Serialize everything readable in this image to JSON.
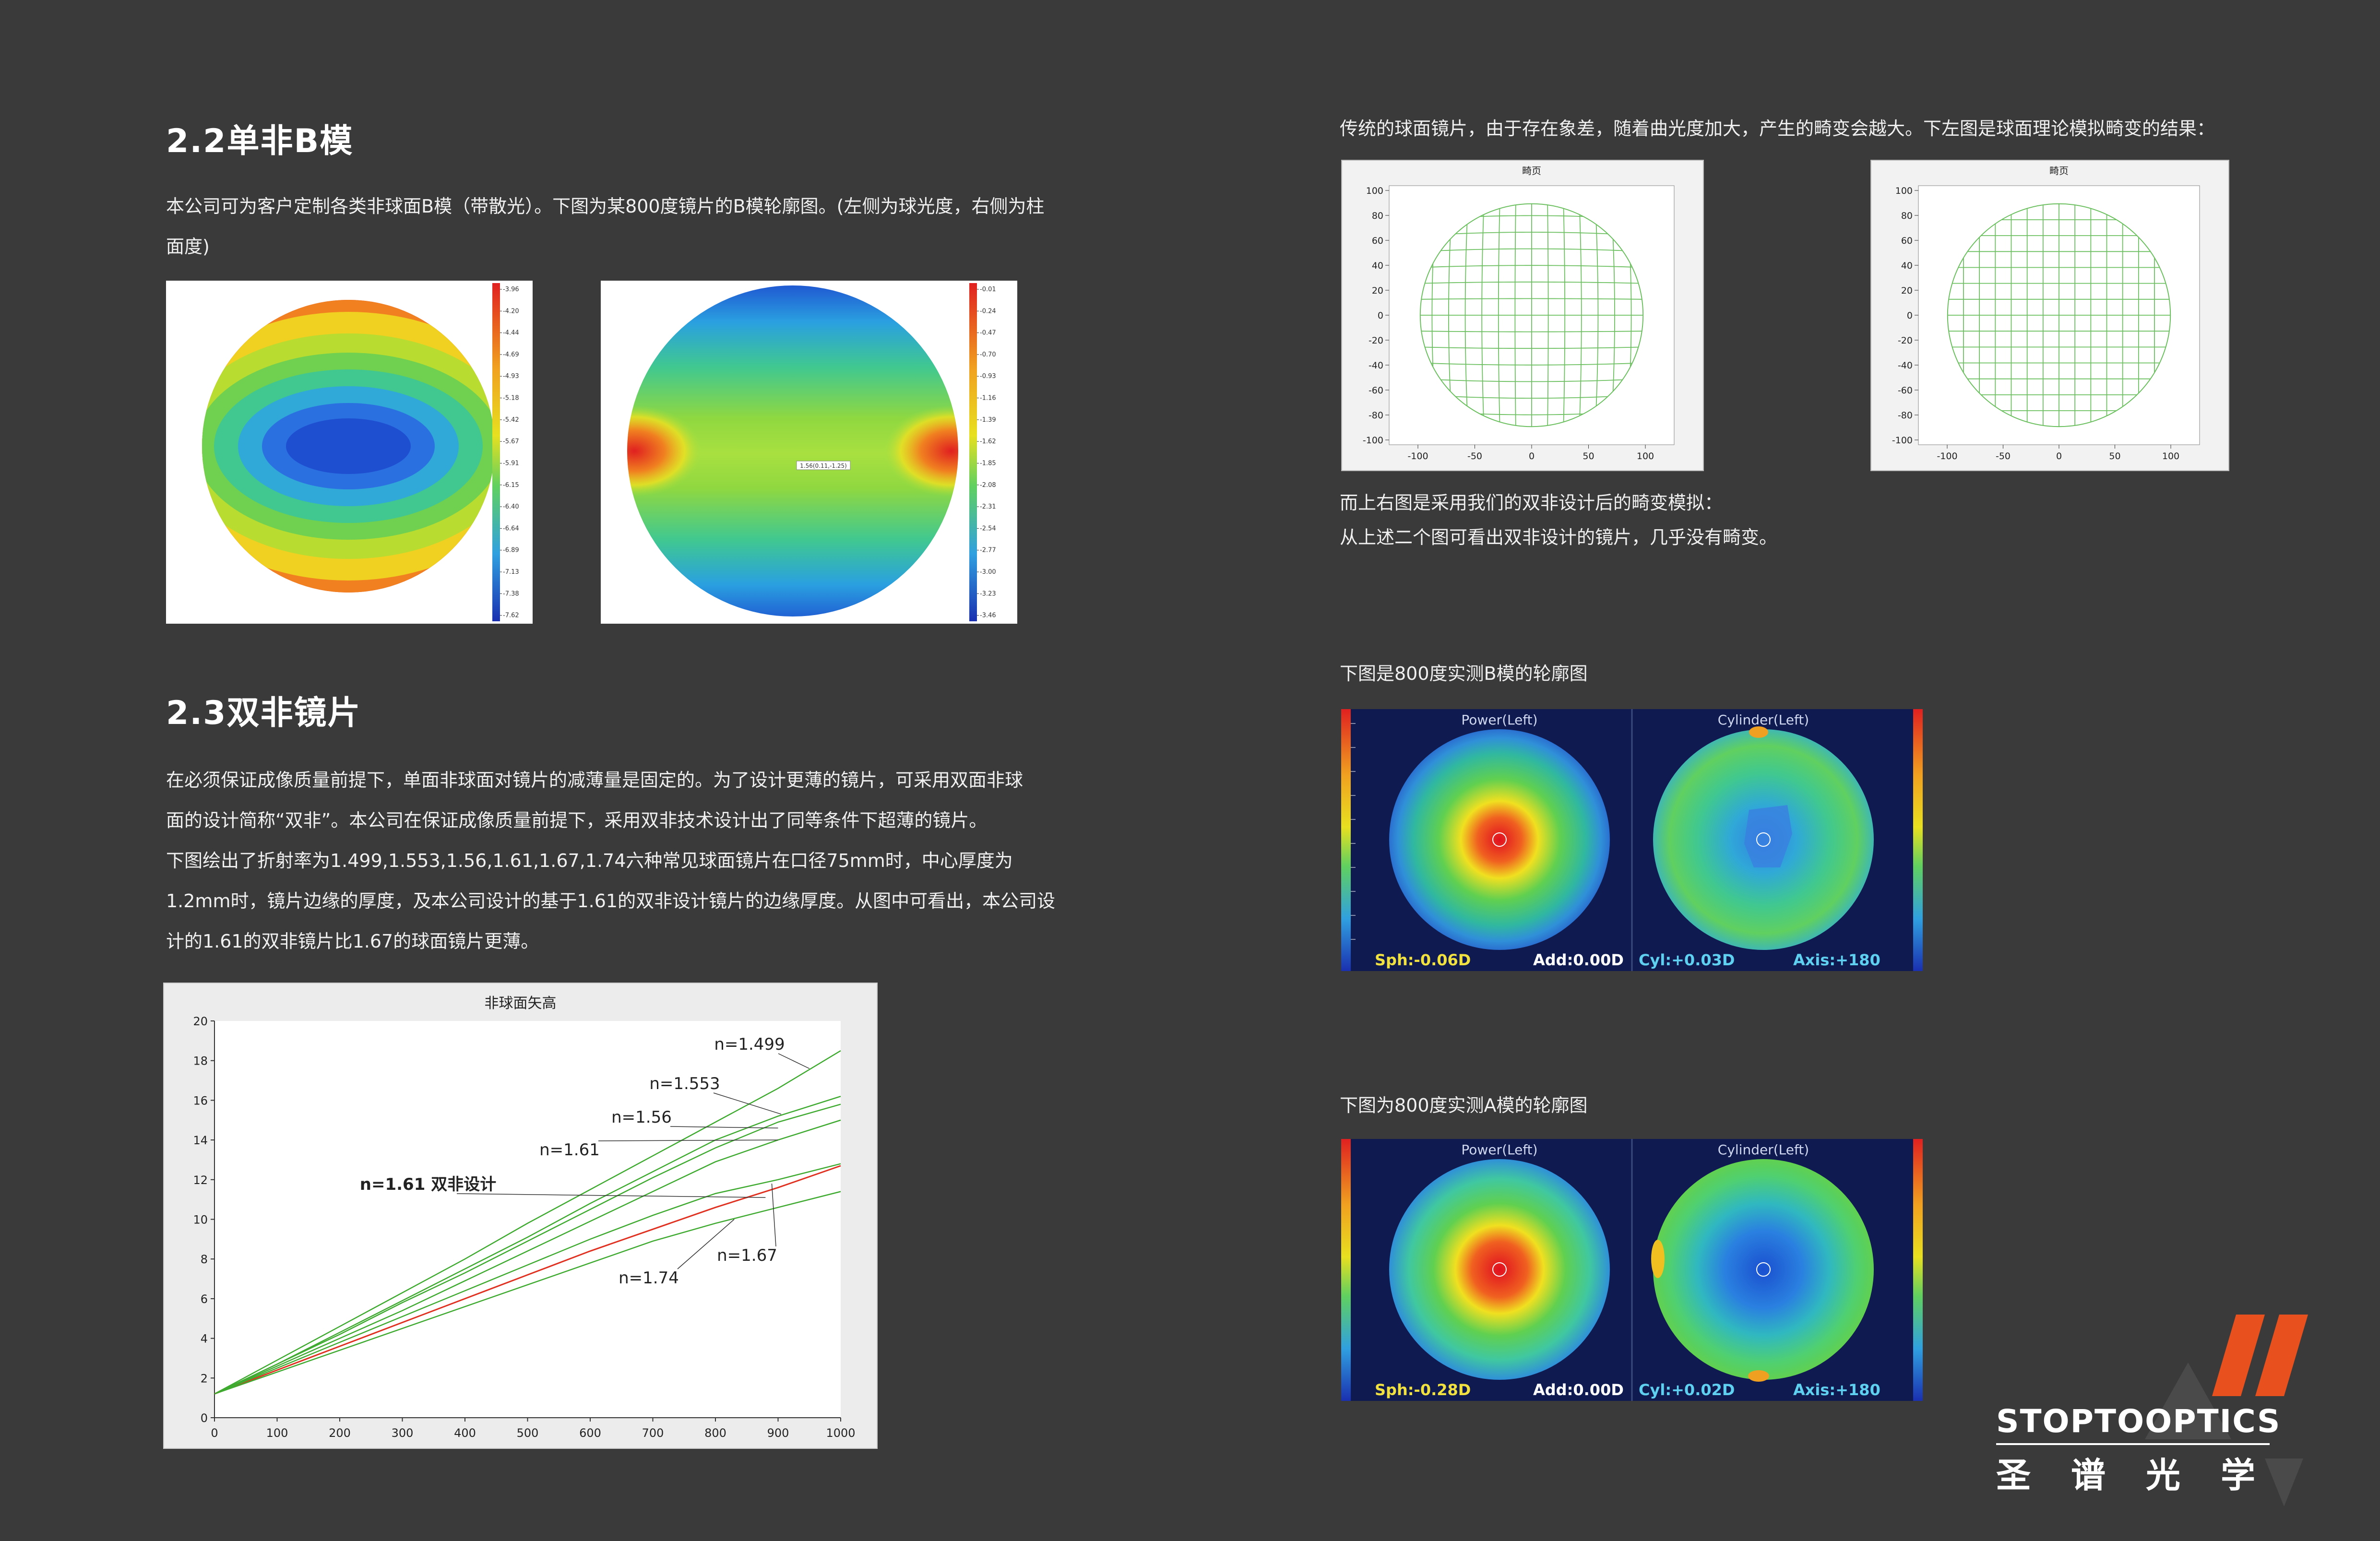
{
  "sec22": {
    "title": "2.2单非B模",
    "para_line1": "本公司可为客户定制各类非球面B模（带散光）。下图为某800度镜片的B模轮廓图。(左侧为球光度，右侧为柱",
    "para_line2": "面度)"
  },
  "sph_scale": [
    "-3.96",
    "-4.20",
    "-4.44",
    "-4.69",
    "-4.93",
    "-5.18",
    "-5.42",
    "-5.67",
    "-5.91",
    "-6.15",
    "-6.40",
    "-6.64",
    "-6.89",
    "-7.13",
    "-7.38",
    "-7.62"
  ],
  "cyl_scale": [
    "-0.01",
    "-0.24",
    "-0.47",
    "-0.70",
    "-0.93",
    "-1.16",
    "-1.39",
    "-1.62",
    "-1.85",
    "-2.08",
    "-2.31",
    "-2.54",
    "-2.77",
    "-3.00",
    "-3.23",
    "-3.46"
  ],
  "cyl_tooltip": "1.56(0.11,-1.25)",
  "sec23": {
    "title": "2.3双非镜片",
    "lines": [
      "在必须保证成像质量前提下，单面非球面对镜片的减薄量是固定的。为了设计更薄的镜片，可采用双面非球",
      "面的设计简称“双非”。本公司在保证成像质量前提下，采用双非技术设计出了同等条件下超薄的镜片。",
      "下图绘出了折射率为1.499,1.553,1.56,1.61,1.67,1.74六种常见球面镜片在口径75mm时，中心厚度为",
      "1.2mm时，镜片边缘的厚度，及本公司设计的基于1.61的双非设计镜片的边缘厚度。从图中可看出，本公司设",
      "计的1.61的双非镜片比1.67的球面镜片更薄。"
    ]
  },
  "chart_data": {
    "type": "line",
    "title": "非球面矢高",
    "xlabel": "",
    "ylabel": "",
    "x": [
      0,
      100,
      200,
      300,
      400,
      500,
      600,
      700,
      800,
      900,
      1000
    ],
    "xlim": [
      0,
      1000
    ],
    "ylim": [
      0,
      20
    ],
    "xticks": [
      "0",
      "100",
      "200",
      "300",
      "400",
      "500",
      "600",
      "700",
      "800",
      "900",
      "1000"
    ],
    "yticks": [
      "0",
      "2",
      "4",
      "6",
      "8",
      "10",
      "12",
      "14",
      "16",
      "18",
      "20"
    ],
    "grid": false,
    "series": [
      {
        "name": "n=1.499",
        "color": "#3faa30",
        "values": [
          1.2,
          2.9,
          4.6,
          6.3,
          8.0,
          9.8,
          11.5,
          13.2,
          14.9,
          16.6,
          18.5
        ]
      },
      {
        "name": "n=1.553",
        "color": "#3faa30",
        "values": [
          1.2,
          2.7,
          4.3,
          5.9,
          7.5,
          9.1,
          10.8,
          12.4,
          14.0,
          15.2,
          16.2
        ]
      },
      {
        "name": "n=1.56",
        "color": "#3faa30",
        "values": [
          1.2,
          2.7,
          4.2,
          5.8,
          7.3,
          8.9,
          10.5,
          12.1,
          13.6,
          14.9,
          15.8
        ]
      },
      {
        "name": "n=1.61",
        "color": "#3faa30",
        "values": [
          1.2,
          2.6,
          4.0,
          5.4,
          6.9,
          8.4,
          9.9,
          11.4,
          12.9,
          14.0,
          15.0
        ]
      },
      {
        "name": "n=1.61 双非设计",
        "color": "#e03020",
        "values": [
          1.2,
          2.4,
          3.6,
          4.8,
          6.0,
          7.2,
          8.4,
          9.5,
          10.6,
          11.6,
          12.7
        ]
      },
      {
        "name": "n=1.67",
        "color": "#3faa30",
        "values": [
          1.2,
          2.5,
          3.8,
          5.1,
          6.4,
          7.7,
          9.0,
          10.2,
          11.3,
          12.0,
          12.8
        ]
      },
      {
        "name": "n=1.74",
        "color": "#3faa30",
        "values": [
          1.2,
          2.3,
          3.4,
          4.5,
          5.6,
          6.7,
          7.8,
          8.9,
          9.8,
          10.6,
          11.4
        ]
      }
    ],
    "annotations": [
      "n=1.499",
      "n=1.553",
      "n=1.56",
      "n=1.61",
      "n=1.61 双非设计",
      "n=1.67",
      "n=1.74"
    ]
  },
  "distortion": {
    "intro": "传统的球面镜片，由于存在象差，随着曲光度加大，产生的畸变会越大。下左图是球面理论模拟畸变的结果：",
    "left_title": "畸页",
    "right_title": "畸页",
    "yticks": [
      "100",
      "80",
      "60",
      "40",
      "20",
      "0",
      "-20",
      "-40",
      "-60",
      "-80",
      "-100"
    ],
    "xticks": [
      "-100",
      "-50",
      "0",
      "50",
      "100"
    ],
    "after_line1": "而上右图是采用我们的双非设计后的畸变模拟：",
    "after_line2": "从上述二个图可看出双非设计的镜片，几乎没有畸变。"
  },
  "meas_b": {
    "caption": "下图是800度实测B模的轮廓图",
    "power_label": "Power(Left)",
    "cyl_label": "Cylinder(Left)",
    "sph": "Sph:-0.06D",
    "add": "Add:0.00D",
    "cyl": "Cyl:+0.03D",
    "axis": "Axis:+180"
  },
  "meas_a": {
    "caption": "下图为800度实测A模的轮廓图",
    "power_label": "Power(Left)",
    "cyl_label": "Cylinder(Left)",
    "sph": "Sph:-0.28D",
    "add": "Add:0.00D",
    "cyl": "Cyl:+0.02D",
    "axis": "Axis:+180"
  },
  "logo": {
    "en": "STOPTOOPTICS",
    "cn": "圣谱光学"
  },
  "colors": {
    "background": "#3a3a3a",
    "accent_orange": "#e8501e",
    "green_line": "#3faa30",
    "red_line": "#e03020"
  }
}
